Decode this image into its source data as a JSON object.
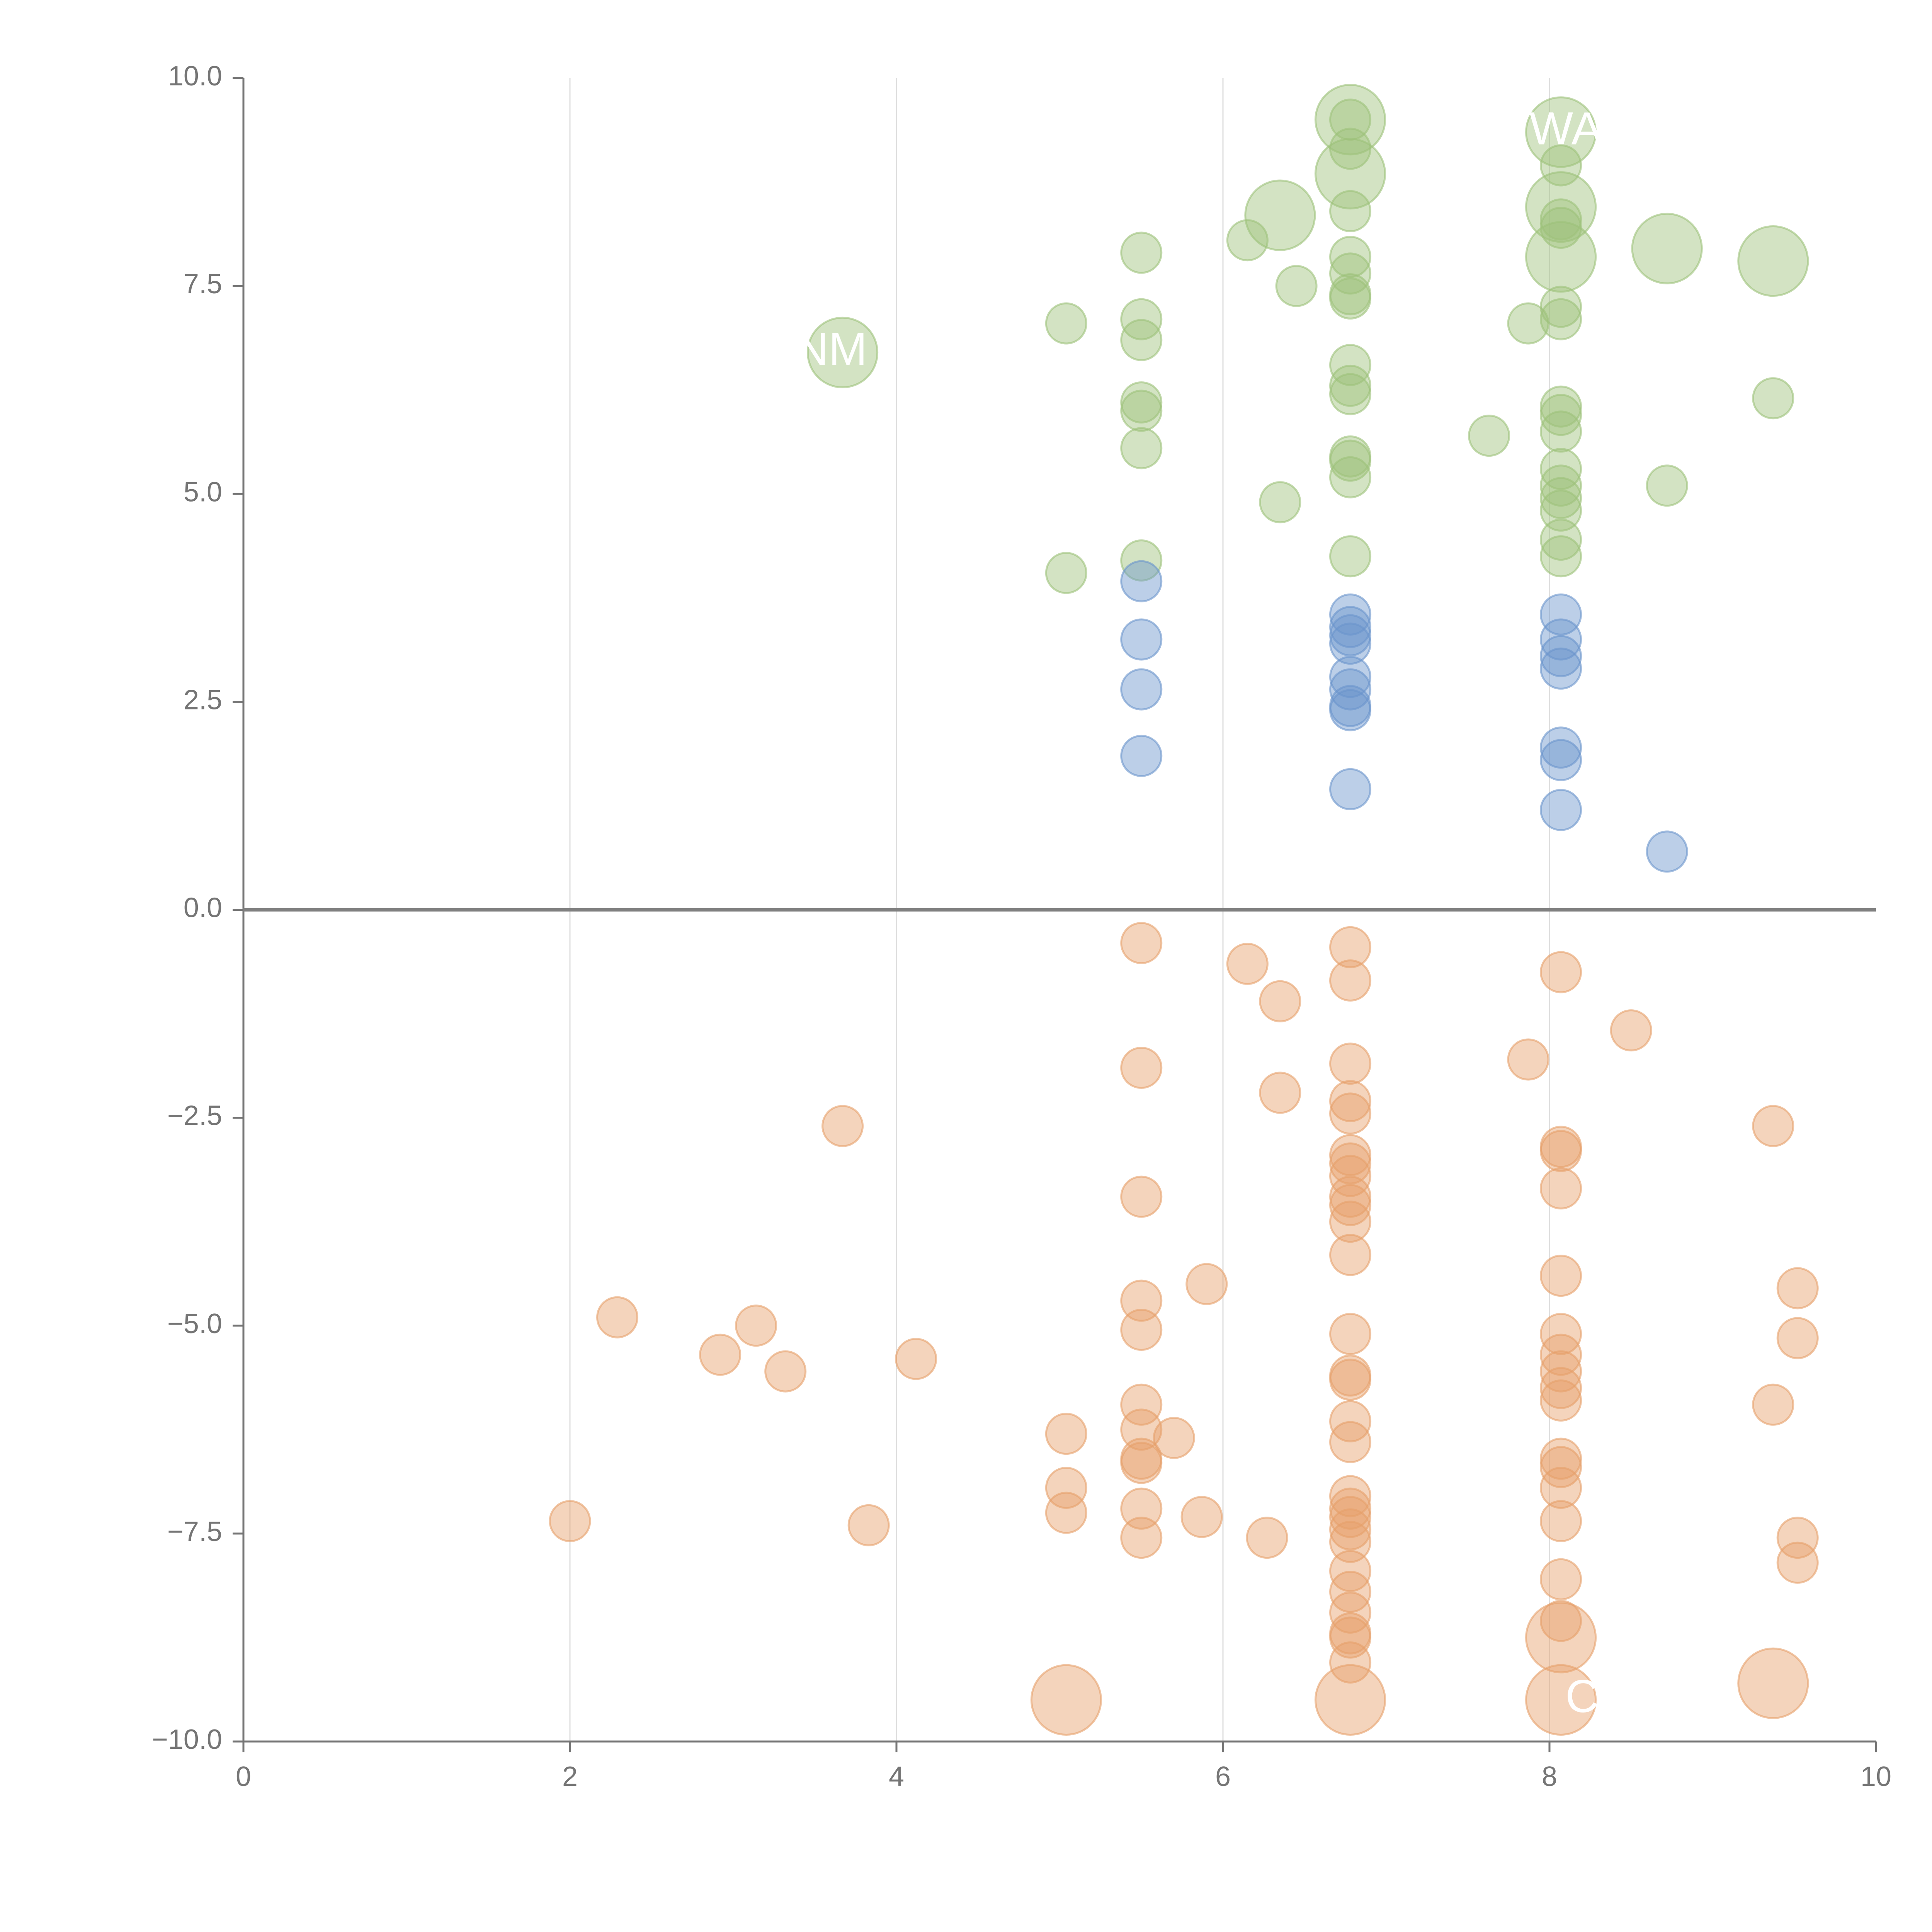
{
  "colors": {
    "positive_high": "#9dc27a",
    "positive_mid": "#6a95cc",
    "negative": "#e6a06a",
    "axis": "#757575",
    "grid": "#dddddd",
    "zero_line": "#808080",
    "label": "#ffffff"
  },
  "chart_data": {
    "type": "scatter",
    "title": "",
    "xlabel": "",
    "ylabel": "",
    "xlim": [
      0,
      10
    ],
    "ylim": [
      -10,
      10
    ],
    "grid": true,
    "x_ticks": [
      0,
      2,
      4,
      6,
      8,
      10
    ],
    "x_tick_labels": [
      "0",
      "2",
      "4",
      "6",
      "8",
      "10"
    ],
    "y_ticks": [
      10,
      7.5,
      5,
      2.5,
      0,
      -2.5,
      -5,
      -7.5,
      -10
    ],
    "y_tick_labels": [
      "10.0",
      "7.5",
      "5.0",
      "2.5",
      "0.0",
      "−2.5",
      "−5.0",
      "−7.5",
      "−10.0"
    ],
    "labels": [
      {
        "text": "WA",
        "x": 8.1,
        "y": 9.35
      },
      {
        "text": "NM",
        "x": 3.6,
        "y": 6.7
      },
      {
        "text": "C",
        "x": 8.2,
        "y": -9.5
      }
    ],
    "series": [
      {
        "name": "green",
        "color_key": "positive_high",
        "points": [
          [
            6.78,
            9.5,
            3
          ],
          [
            6.78,
            9.5,
            1
          ],
          [
            6.78,
            9.15,
            1
          ],
          [
            6.78,
            8.85,
            3
          ],
          [
            6.78,
            8.4,
            1
          ],
          [
            6.78,
            7.85,
            1
          ],
          [
            6.78,
            7.65,
            1
          ],
          [
            6.78,
            7.4,
            1
          ],
          [
            6.78,
            7.35,
            1
          ],
          [
            6.78,
            6.55,
            1
          ],
          [
            6.78,
            6.3,
            1
          ],
          [
            6.78,
            6.2,
            1
          ],
          [
            6.78,
            5.45,
            1
          ],
          [
            6.78,
            5.4,
            1
          ],
          [
            6.78,
            5.2,
            1
          ],
          [
            6.78,
            4.25,
            1
          ],
          [
            6.35,
            8.35,
            3
          ],
          [
            6.15,
            8.05,
            1
          ],
          [
            6.45,
            7.5,
            1
          ],
          [
            6.35,
            4.9,
            1
          ],
          [
            8.07,
            9.35,
            3
          ],
          [
            8.07,
            8.95,
            1
          ],
          [
            8.07,
            8.45,
            3
          ],
          [
            8.07,
            8.3,
            1
          ],
          [
            8.07,
            8.2,
            1
          ],
          [
            8.07,
            7.85,
            3
          ],
          [
            8.07,
            7.25,
            1
          ],
          [
            8.07,
            7.1,
            1
          ],
          [
            8.07,
            6.05,
            1
          ],
          [
            8.07,
            5.95,
            1
          ],
          [
            8.07,
            5.75,
            1
          ],
          [
            8.07,
            5.3,
            1
          ],
          [
            8.07,
            5.1,
            1
          ],
          [
            8.07,
            4.95,
            1
          ],
          [
            8.07,
            4.8,
            1
          ],
          [
            8.07,
            4.45,
            1
          ],
          [
            8.07,
            4.25,
            1
          ],
          [
            7.87,
            7.05,
            1
          ],
          [
            7.63,
            5.7,
            1
          ],
          [
            8.72,
            7.95,
            3
          ],
          [
            8.72,
            5.1,
            1
          ],
          [
            9.37,
            7.8,
            3
          ],
          [
            9.37,
            6.15,
            1
          ],
          [
            5.5,
            7.9,
            1
          ],
          [
            5.5,
            7.1,
            1
          ],
          [
            5.5,
            6.85,
            1
          ],
          [
            5.5,
            6.1,
            1
          ],
          [
            5.5,
            6.0,
            1
          ],
          [
            5.5,
            5.55,
            1
          ],
          [
            5.5,
            4.2,
            1
          ],
          [
            5.04,
            7.05,
            1
          ],
          [
            5.04,
            4.05,
            1
          ],
          [
            3.67,
            6.7,
            3
          ]
        ]
      },
      {
        "name": "blue",
        "color_key": "positive_mid",
        "points": [
          [
            5.5,
            3.95,
            1
          ],
          [
            5.5,
            3.25,
            1
          ],
          [
            5.5,
            2.65,
            1
          ],
          [
            5.5,
            1.85,
            1
          ],
          [
            6.78,
            3.55,
            1
          ],
          [
            6.78,
            3.4,
            1
          ],
          [
            6.78,
            3.3,
            1
          ],
          [
            6.78,
            3.2,
            1
          ],
          [
            6.78,
            2.8,
            1
          ],
          [
            6.78,
            2.65,
            1
          ],
          [
            6.78,
            2.45,
            1
          ],
          [
            6.78,
            2.4,
            1
          ],
          [
            6.78,
            1.45,
            1
          ],
          [
            8.07,
            3.55,
            1
          ],
          [
            8.07,
            3.25,
            1
          ],
          [
            8.07,
            3.05,
            1
          ],
          [
            8.07,
            2.9,
            1
          ],
          [
            8.07,
            1.95,
            1
          ],
          [
            8.07,
            1.8,
            1
          ],
          [
            8.07,
            1.2,
            1
          ],
          [
            8.72,
            0.7,
            1
          ]
        ]
      },
      {
        "name": "orange",
        "color_key": "negative",
        "points": [
          [
            5.5,
            -0.4,
            1
          ],
          [
            5.5,
            -1.9,
            1
          ],
          [
            5.5,
            -3.45,
            1
          ],
          [
            5.5,
            -4.7,
            1
          ],
          [
            5.5,
            -5.05,
            1
          ],
          [
            5.5,
            -5.95,
            1
          ],
          [
            5.5,
            -6.25,
            1
          ],
          [
            5.5,
            -6.6,
            1
          ],
          [
            5.5,
            -6.65,
            1
          ],
          [
            5.5,
            -7.2,
            1
          ],
          [
            5.5,
            -7.55,
            1
          ],
          [
            5.7,
            -6.35,
            1
          ],
          [
            6.15,
            -0.65,
            1
          ],
          [
            6.35,
            -1.1,
            1
          ],
          [
            6.35,
            -2.2,
            1
          ],
          [
            5.9,
            -4.5,
            1
          ],
          [
            5.87,
            -7.3,
            1
          ],
          [
            6.27,
            -7.55,
            1
          ],
          [
            6.78,
            -0.45,
            1
          ],
          [
            6.78,
            -0.85,
            1
          ],
          [
            6.78,
            -1.85,
            1
          ],
          [
            6.78,
            -2.3,
            1
          ],
          [
            6.78,
            -2.45,
            1
          ],
          [
            6.78,
            -2.95,
            1
          ],
          [
            6.78,
            -3.05,
            1
          ],
          [
            6.78,
            -3.2,
            1
          ],
          [
            6.78,
            -3.45,
            1
          ],
          [
            6.78,
            -3.55,
            1
          ],
          [
            6.78,
            -3.75,
            1
          ],
          [
            6.78,
            -4.15,
            1
          ],
          [
            6.78,
            -5.1,
            1
          ],
          [
            6.78,
            -5.6,
            1
          ],
          [
            6.78,
            -5.65,
            1
          ],
          [
            6.78,
            -6.15,
            1
          ],
          [
            6.78,
            -6.4,
            1
          ],
          [
            6.78,
            -7.05,
            1
          ],
          [
            6.78,
            -7.2,
            1
          ],
          [
            6.78,
            -7.3,
            1
          ],
          [
            6.78,
            -7.45,
            1
          ],
          [
            6.78,
            -7.6,
            1
          ],
          [
            6.78,
            -7.95,
            1
          ],
          [
            6.78,
            -8.2,
            1
          ],
          [
            6.78,
            -8.45,
            1
          ],
          [
            6.78,
            -8.7,
            1
          ],
          [
            6.78,
            -8.75,
            1
          ],
          [
            6.78,
            -9.05,
            1
          ],
          [
            6.78,
            -9.5,
            3
          ],
          [
            8.07,
            -0.75,
            1
          ],
          [
            8.07,
            -2.85,
            1
          ],
          [
            8.07,
            -2.9,
            1
          ],
          [
            8.07,
            -3.35,
            1
          ],
          [
            8.07,
            -4.4,
            1
          ],
          [
            8.07,
            -5.1,
            1
          ],
          [
            8.07,
            -5.35,
            1
          ],
          [
            8.07,
            -5.55,
            1
          ],
          [
            8.07,
            -5.75,
            1
          ],
          [
            8.07,
            -5.9,
            1
          ],
          [
            8.07,
            -6.6,
            1
          ],
          [
            8.07,
            -6.7,
            1
          ],
          [
            8.07,
            -6.95,
            1
          ],
          [
            8.07,
            -7.35,
            1
          ],
          [
            8.07,
            -8.05,
            1
          ],
          [
            8.07,
            -8.55,
            1
          ],
          [
            8.07,
            -8.75,
            3
          ],
          [
            8.07,
            -9.5,
            3
          ],
          [
            7.87,
            -1.8,
            1
          ],
          [
            8.5,
            -1.45,
            1
          ],
          [
            9.37,
            -2.6,
            1
          ],
          [
            9.37,
            -5.95,
            1
          ],
          [
            9.37,
            -9.3,
            3
          ],
          [
            9.52,
            -4.55,
            1
          ],
          [
            9.52,
            -5.15,
            1
          ],
          [
            9.52,
            -7.55,
            1
          ],
          [
            9.52,
            -7.85,
            1
          ],
          [
            5.04,
            -6.3,
            1
          ],
          [
            5.04,
            -6.95,
            1
          ],
          [
            5.04,
            -7.25,
            1
          ],
          [
            5.04,
            -9.5,
            3
          ],
          [
            4.12,
            -5.4,
            1
          ],
          [
            3.83,
            -7.4,
            1
          ],
          [
            3.67,
            -2.6,
            1
          ],
          [
            3.32,
            -5.55,
            1
          ],
          [
            3.14,
            -5.0,
            1
          ],
          [
            2.92,
            -5.35,
            1
          ],
          [
            2.29,
            -4.9,
            1
          ],
          [
            2.0,
            -7.35,
            1
          ]
        ]
      }
    ]
  }
}
